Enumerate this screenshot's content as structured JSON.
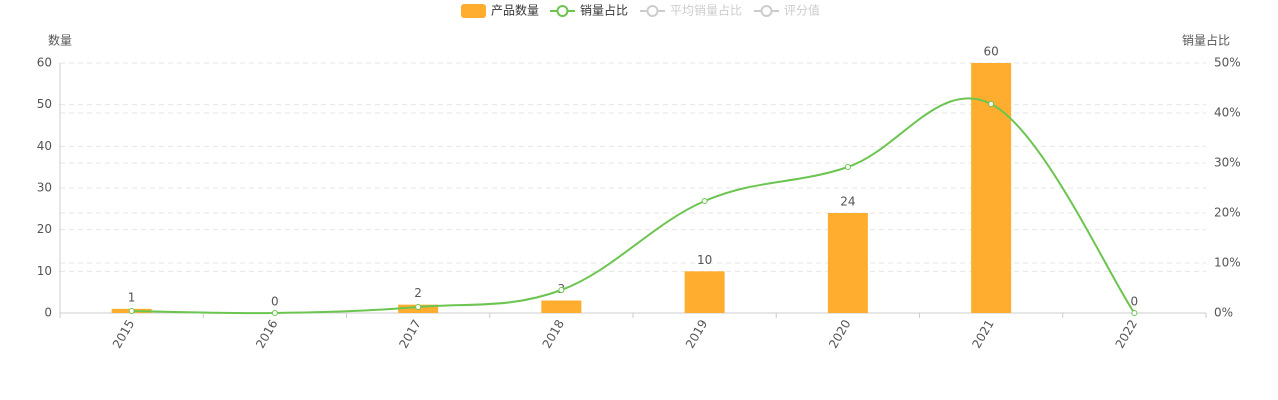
{
  "chart_data": {
    "type": "bar-line",
    "categories": [
      "2015",
      "2016",
      "2017",
      "2018",
      "2019",
      "2020",
      "2021",
      "2022"
    ],
    "series": [
      {
        "name": "产品数量",
        "type": "bar",
        "color": "#ffad2e",
        "values": [
          1,
          0,
          2,
          3,
          10,
          24,
          60,
          0
        ]
      },
      {
        "name": "销量占比",
        "type": "line",
        "axis": "y2",
        "color": "#6cc550",
        "values": [
          0.4,
          0,
          1.2,
          4.6,
          22.4,
          29.2,
          41.8,
          0
        ]
      }
    ],
    "hidden_series": [
      {
        "name": "平均销量占比",
        "color": "#cccccc"
      },
      {
        "name": "评分值",
        "color": "#cccccc"
      }
    ],
    "y_label": "数量",
    "y2_label": "销量占比",
    "ylim": [
      0,
      60
    ],
    "yticks": [
      0,
      10,
      20,
      30,
      40,
      50,
      60
    ],
    "y2lim": [
      0,
      50
    ],
    "y2ticks": [
      {
        "value": 0,
        "label": "0%"
      },
      {
        "value": 10,
        "label": "10%"
      },
      {
        "value": 20,
        "label": "20%"
      },
      {
        "value": 30,
        "label": "30%"
      },
      {
        "value": 40,
        "label": "40%"
      },
      {
        "value": 50,
        "label": "50%"
      }
    ],
    "grid": true
  }
}
